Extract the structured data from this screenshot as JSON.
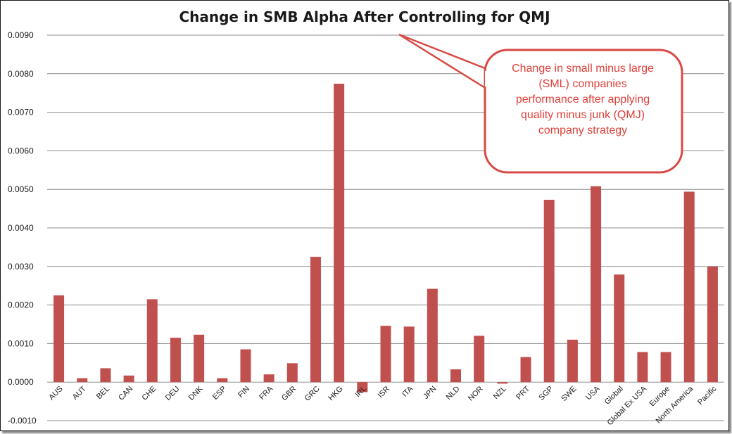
{
  "chart_data": {
    "type": "bar",
    "title": "Change in SMB Alpha After Controlling for QMJ",
    "xlabel": "",
    "ylabel": "",
    "ylim": [
      -0.001,
      0.009
    ],
    "yticks": [
      "-0.0010",
      "0.0000",
      "0.0010",
      "0.0020",
      "0.0030",
      "0.0040",
      "0.0050",
      "0.0060",
      "0.0070",
      "0.0080",
      "0.0090"
    ],
    "grid": true,
    "legend": "none",
    "categories": [
      "AUS",
      "AUT",
      "BEL",
      "CAN",
      "CHE",
      "DEU",
      "DNK",
      "ESP",
      "FIN",
      "FRA",
      "GBR",
      "GRC",
      "HKG",
      "IRL",
      "ISR",
      "ITA",
      "JPN",
      "NLD",
      "NOR",
      "NZL",
      "PRT",
      "SGP",
      "SWE",
      "USA",
      "Global",
      "Global Ex USA",
      "Europe",
      "North America",
      "Pacific"
    ],
    "values": [
      0.00225,
      0.0001,
      0.00036,
      0.00017,
      0.00215,
      0.00115,
      0.00123,
      0.0001,
      0.00085,
      0.0002,
      0.00049,
      0.00325,
      0.00774,
      -0.00026,
      0.00146,
      0.00144,
      0.00242,
      0.00033,
      0.0012,
      -4e-05,
      0.00065,
      0.00473,
      0.0011,
      0.00508,
      0.00279,
      0.00078,
      0.00078,
      0.00494,
      0.003
    ],
    "bar_color": "#c0504d",
    "annotation": "Change in small minus large (SML) companies performance after applying quality minus junk (QMJ) company strategy"
  },
  "colors": {
    "bar": "#c0504d",
    "grid": "#8c8c8c",
    "callout_border": "#d94a45",
    "callout_text": "#e0403a"
  }
}
